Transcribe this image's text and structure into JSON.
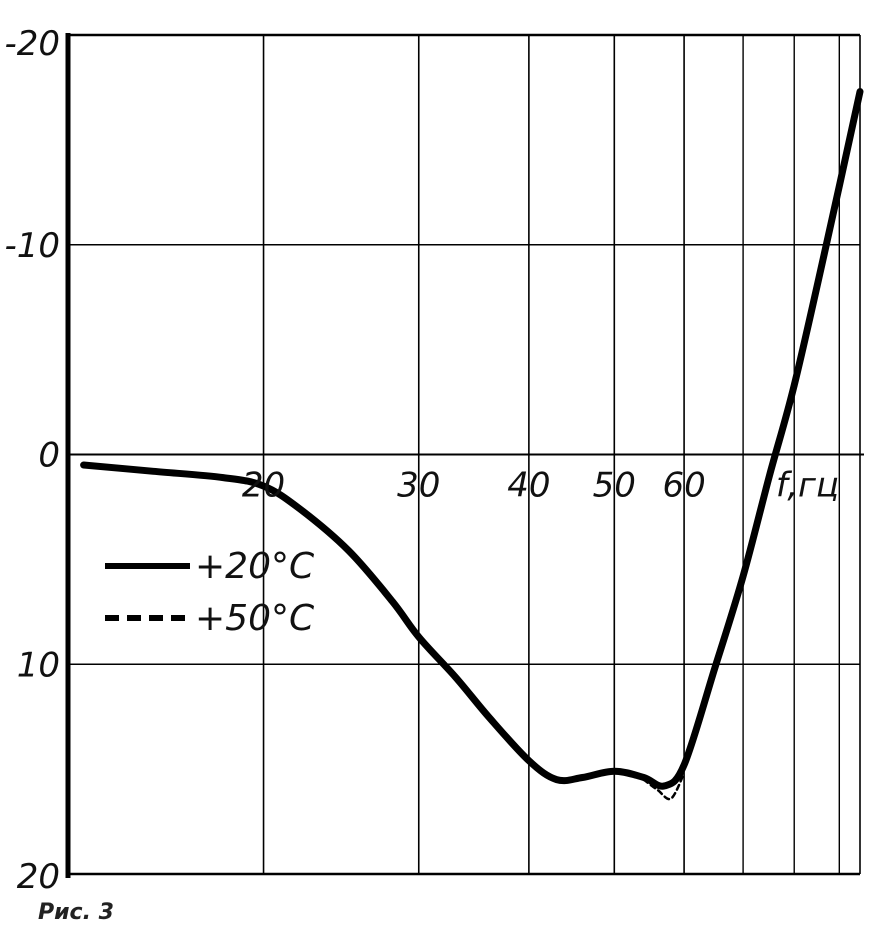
{
  "chart_data": {
    "type": "line",
    "x_scale": "log",
    "y_axis_inverted": true,
    "xlabel": "f,гц",
    "ylabel": "",
    "xlim": [
      12,
      95
    ],
    "ylim": [
      -20,
      20
    ],
    "x_ticks": [
      {
        "value": 20,
        "label": "20"
      },
      {
        "value": 30,
        "label": "30"
      },
      {
        "value": 40,
        "label": "40"
      },
      {
        "value": 50,
        "label": "50"
      },
      {
        "value": 60,
        "label": "60"
      }
    ],
    "x_minor_grid": [
      70,
      80,
      90
    ],
    "y_ticks": [
      {
        "value": -20,
        "label": "-20"
      },
      {
        "value": -10,
        "label": "-10"
      },
      {
        "value": 0,
        "label": "0"
      },
      {
        "value": 10,
        "label": "10"
      },
      {
        "value": 20,
        "label": "20"
      }
    ],
    "grid": true,
    "legend_position": "left-middle",
    "series": [
      {
        "name": "+20°C",
        "style": "solid",
        "x": [
          12.5,
          15,
          18,
          20,
          22,
          25,
          28,
          30,
          33,
          36,
          40,
          43,
          46,
          50,
          54,
          57,
          60,
          65,
          70,
          75,
          80,
          87,
          95
        ],
        "y": [
          0.5,
          0.8,
          1.1,
          1.5,
          2.6,
          4.6,
          7.0,
          8.7,
          10.6,
          12.5,
          14.6,
          15.5,
          15.4,
          15.1,
          15.4,
          15.8,
          14.8,
          10.2,
          5.8,
          1.0,
          -3.3,
          -10.0,
          -17.3
        ]
      },
      {
        "name": "+50°C",
        "style": "dashed",
        "x": [
          54,
          56,
          58,
          60
        ],
        "y": [
          15.5,
          16.0,
          16.4,
          15.2
        ]
      }
    ]
  },
  "caption": "Рис. 3"
}
